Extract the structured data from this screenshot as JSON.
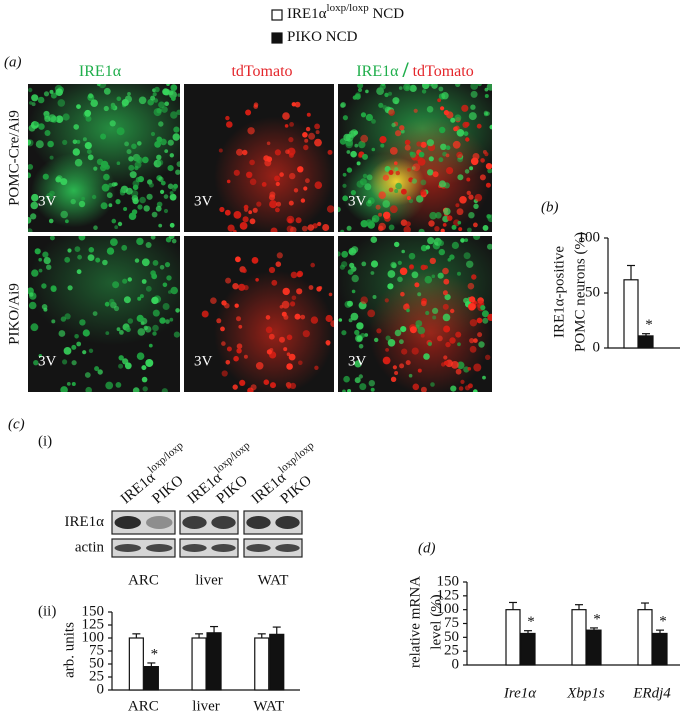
{
  "legend": [
    {
      "text": "IRE1α",
      "sup": "loxp/loxp",
      "suffix": " NCD",
      "color": "#ffffff"
    },
    {
      "text": "PIKO NCD",
      "color": "#111111"
    }
  ],
  "panel_a": {
    "label": "(a)",
    "columns": [
      {
        "parts": [
          {
            "text": "IRE1α",
            "color": "#1fae4b"
          }
        ]
      },
      {
        "parts": [
          {
            "text": "tdTomato",
            "color": "#e4262b"
          }
        ]
      },
      {
        "parts": [
          {
            "text": "IRE1α ",
            "color": "#1fae4b"
          },
          {
            "text": "/",
            "color": "#1fae4b"
          },
          {
            "text": " tdTomato",
            "color": "#e4262b"
          }
        ]
      }
    ],
    "rows": [
      "POMC-Cre/Ai9",
      "PIKO/Ai9"
    ],
    "region": "3V"
  },
  "panel_c": {
    "label": "(c)",
    "sub_i": "(i)",
    "sub_ii": "(ii)",
    "lanes": [
      {
        "text": "IRE1α",
        "sup": "loxp/loxp"
      },
      {
        "text": "PIKO"
      }
    ],
    "rows": [
      "IRE1α",
      "actin"
    ]
  },
  "chart_data": [
    {
      "type": "bar",
      "panel_label": "(b)",
      "ylabel": [
        "IRE1α-positive",
        "POMC neurons (%)"
      ],
      "series": [
        {
          "color": "#ffffff",
          "values": [
            62
          ],
          "errors": [
            13
          ]
        },
        {
          "color": "#111111",
          "values": [
            11
          ],
          "errors": [
            2
          ]
        }
      ],
      "ylim": [
        0,
        100
      ],
      "yticks": [
        0,
        50,
        100
      ],
      "annotations": [
        {
          "text": "*",
          "series": 1,
          "index": 0
        }
      ]
    },
    {
      "type": "bar",
      "ylabel": [
        "arb. units"
      ],
      "categories": [
        "ARC",
        "liver",
        "WAT"
      ],
      "series": [
        {
          "color": "#ffffff",
          "values": [
            100,
            100,
            100
          ],
          "errors": [
            8,
            8,
            8
          ]
        },
        {
          "color": "#111111",
          "values": [
            45,
            110,
            107
          ],
          "errors": [
            7,
            12,
            14
          ]
        }
      ],
      "ylim": [
        0,
        150
      ],
      "yticks": [
        0,
        25,
        50,
        75,
        100,
        125,
        150
      ],
      "annotations": [
        {
          "text": "*",
          "series": 1,
          "index": 0
        }
      ]
    },
    {
      "type": "bar",
      "panel_label": "(d)",
      "ylabel": [
        "relative mRNA",
        "level (%)"
      ],
      "categories": [
        "Ire1α",
        "Xbp1s",
        "ERdj4"
      ],
      "series": [
        {
          "color": "#ffffff",
          "values": [
            100,
            100,
            100
          ],
          "errors": [
            13,
            9,
            12
          ]
        },
        {
          "color": "#111111",
          "values": [
            57,
            63,
            57
          ],
          "errors": [
            5,
            4,
            6
          ]
        }
      ],
      "ylim": [
        0,
        150
      ],
      "yticks": [
        0,
        25,
        50,
        75,
        100,
        125,
        150
      ],
      "annotations": [
        {
          "text": "*",
          "series": 1,
          "index": 0
        },
        {
          "text": "*",
          "series": 1,
          "index": 1
        },
        {
          "text": "*",
          "series": 1,
          "index": 2
        }
      ]
    }
  ]
}
